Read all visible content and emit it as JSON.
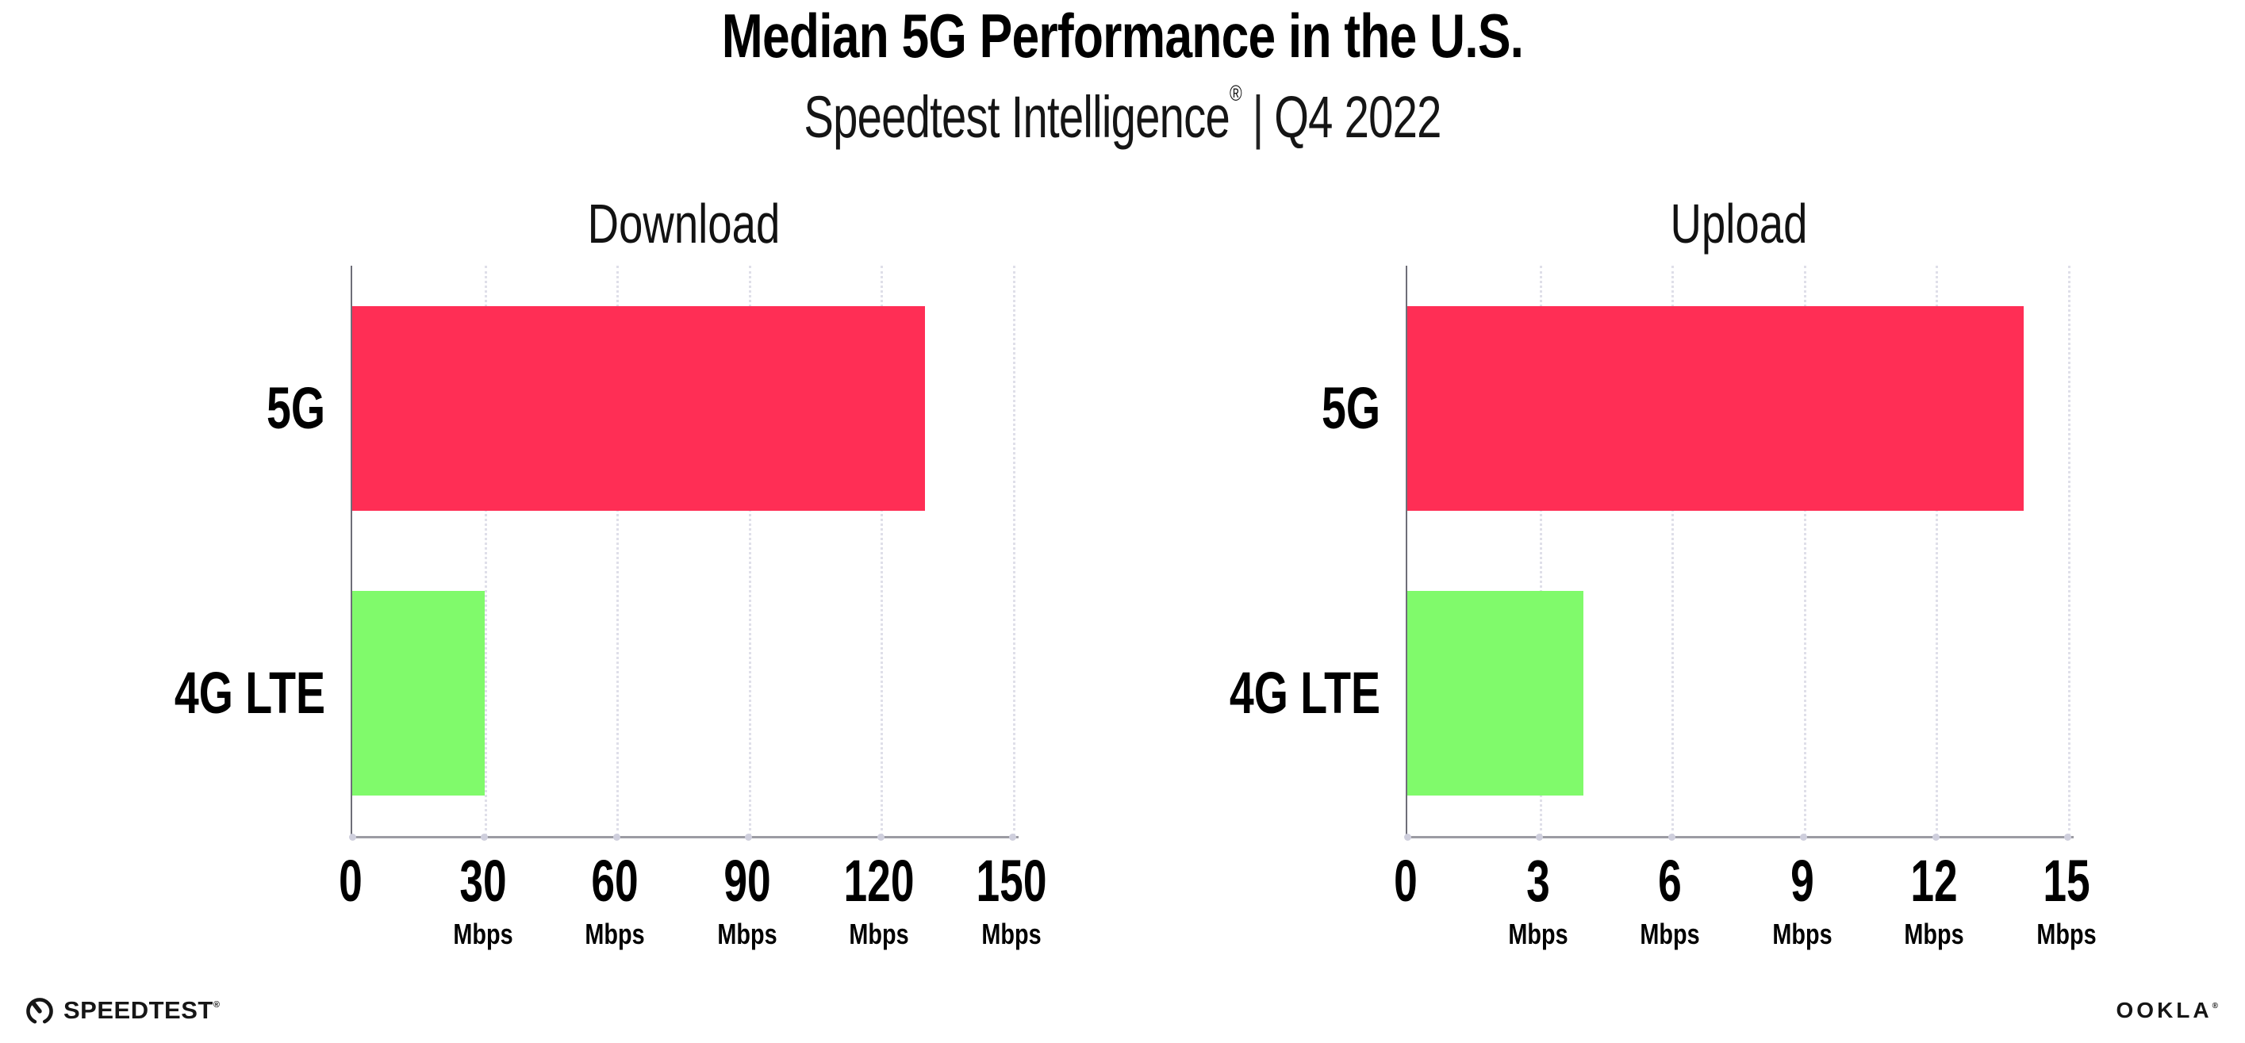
{
  "header": {
    "title": "Median 5G Performance in the U.S.",
    "subtitle_brand": "Speedtest Intelligence",
    "subtitle_mark": "®",
    "subtitle_separator": "|",
    "subtitle_period": "Q4 2022"
  },
  "chart_data": [
    {
      "type": "bar",
      "orientation": "horizontal",
      "title": "Download",
      "categories": [
        "5G",
        "4G LTE"
      ],
      "values": [
        130,
        30
      ],
      "unit": "Mbps",
      "bar_colors": [
        "#ff2e55",
        "#80fa6b"
      ],
      "ticks": [
        0,
        30,
        60,
        90,
        120,
        150
      ],
      "xlim": [
        0,
        155
      ],
      "grid": "dotted-vertical",
      "legend": "none"
    },
    {
      "type": "bar",
      "orientation": "horizontal",
      "title": "Upload",
      "categories": [
        "5G",
        "4G LTE"
      ],
      "values": [
        14,
        4
      ],
      "unit": "Mbps",
      "bar_colors": [
        "#ff2e55",
        "#80fa6b"
      ],
      "ticks": [
        0,
        3,
        6,
        9,
        12,
        15
      ],
      "xlim": [
        0,
        15.5
      ],
      "grid": "dotted-vertical",
      "legend": "none"
    }
  ],
  "footer": {
    "speedtest_logo": "SPEEDTEST",
    "speedtest_mark": "®",
    "ookla_logo": "OOKLA",
    "ookla_mark": "®"
  },
  "colors": {
    "bar_5g": "#ff2e55",
    "bar_4g_lte": "#80fa6b",
    "gridline": "#dfdfe9",
    "x_axis_line": "#9c9ca3",
    "y_axis_line": "#6e6e78",
    "text": "#000000"
  }
}
